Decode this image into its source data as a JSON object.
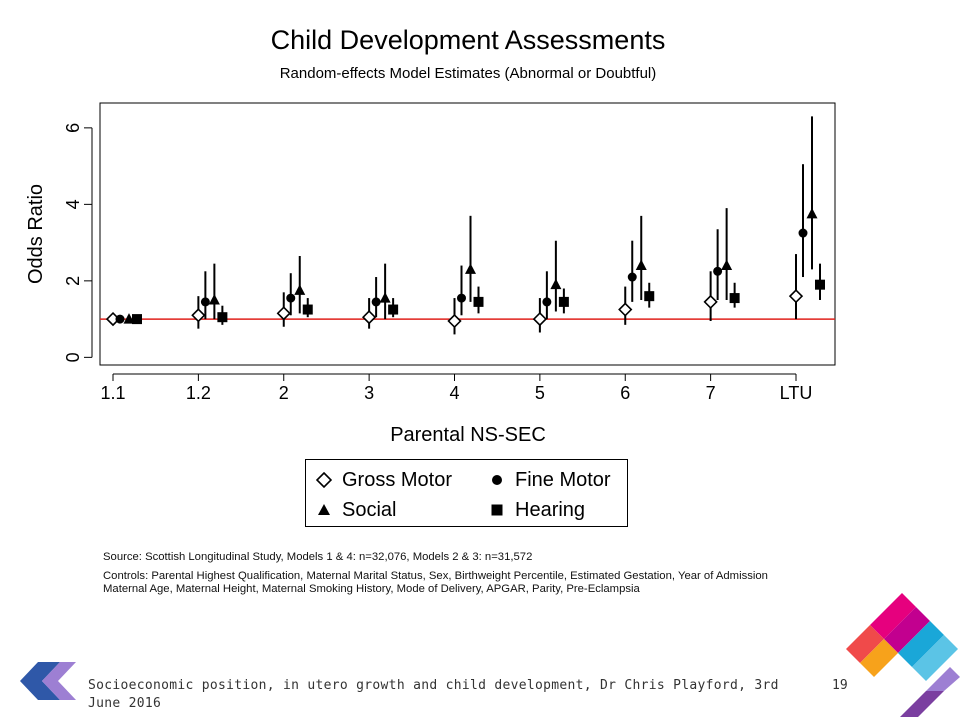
{
  "chart_data": {
    "type": "scatter",
    "title": "Child Development Assessments",
    "subtitle": "Random-effects Model Estimates (Abnormal or Doubtful)",
    "xlabel": "Parental NS-SEC",
    "ylabel": "Odds Ratio",
    "categories": [
      "1.1",
      "1.2",
      "2",
      "3",
      "4",
      "5",
      "6",
      "7",
      "LTU"
    ],
    "ylim": [
      -0.2,
      6.65
    ],
    "yticks": [
      0,
      2,
      4,
      6
    ],
    "reference_line": 1,
    "legend_placement": "below",
    "series": [
      {
        "name": "Gross Motor",
        "marker": "diamond-open",
        "values": [
          1.0,
          1.1,
          1.15,
          1.05,
          0.95,
          1.0,
          1.25,
          1.45,
          1.6
        ],
        "ci_low": [
          1.0,
          0.75,
          0.8,
          0.75,
          0.6,
          0.65,
          0.85,
          0.95,
          1.0
        ],
        "ci_high": [
          1.0,
          1.6,
          1.7,
          1.55,
          1.55,
          1.55,
          1.85,
          2.25,
          2.7
        ]
      },
      {
        "name": "Fine Motor",
        "marker": "circle",
        "values": [
          1.0,
          1.45,
          1.55,
          1.45,
          1.55,
          1.45,
          2.1,
          2.25,
          3.25
        ],
        "ci_low": [
          1.0,
          1.0,
          1.1,
          1.05,
          1.1,
          1.0,
          1.45,
          1.5,
          2.1
        ],
        "ci_high": [
          1.0,
          2.25,
          2.2,
          2.1,
          2.4,
          2.25,
          3.05,
          3.35,
          5.05
        ]
      },
      {
        "name": "Social",
        "marker": "triangle",
        "values": [
          1.0,
          1.5,
          1.75,
          1.55,
          2.3,
          1.9,
          2.4,
          2.4,
          3.75
        ],
        "ci_low": [
          1.0,
          1.0,
          1.15,
          1.0,
          1.45,
          1.2,
          1.5,
          1.5,
          2.3
        ],
        "ci_high": [
          1.0,
          2.45,
          2.65,
          2.45,
          3.7,
          3.05,
          3.7,
          3.9,
          6.3
        ]
      },
      {
        "name": "Hearing",
        "marker": "square",
        "values": [
          1.0,
          1.05,
          1.25,
          1.25,
          1.45,
          1.45,
          1.6,
          1.55,
          1.9
        ],
        "ci_low": [
          1.0,
          0.85,
          1.05,
          1.05,
          1.15,
          1.15,
          1.3,
          1.3,
          1.5
        ],
        "ci_high": [
          1.0,
          1.35,
          1.55,
          1.55,
          1.85,
          1.8,
          1.95,
          1.95,
          2.45
        ]
      }
    ]
  },
  "notes": {
    "source": "Source: Scottish Longitudinal Study,  Models 1 & 4: n=32,076,  Models 2 & 3: n=31,572",
    "controls_line1": "Controls: Parental Highest Qualification, Maternal Marital Status, Sex, Birthweight Percentile, Estimated Gestation, Year of Admission",
    "controls_line2": "Maternal Age, Maternal Height, Maternal Smoking History, Mode of Delivery, APGAR, Parity, Pre-Eclampsia"
  },
  "footer": {
    "text": "Socioeconomic position, in utero growth and child development, Dr Chris Playford, 3rd June 2016",
    "page_number": "19"
  },
  "colors": {
    "reference_line": "#e0201b",
    "logo_left_blue": "#2f58a8",
    "logo_left_purple": "#9d7fd3",
    "logo_right_pink": "#e6007e",
    "logo_right_red": "#f04a4a",
    "logo_right_orange": "#f7a21b",
    "logo_right_cyan": "#1aa7d8",
    "logo_right_purple": "#7b3fa0"
  }
}
